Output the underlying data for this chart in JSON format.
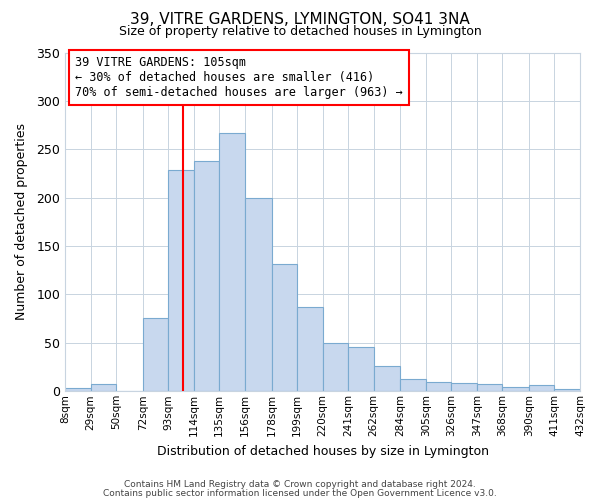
{
  "title": "39, VITRE GARDENS, LYMINGTON, SO41 3NA",
  "subtitle": "Size of property relative to detached houses in Lymington",
  "xlabel": "Distribution of detached houses by size in Lymington",
  "ylabel": "Number of detached properties",
  "bar_color": "#c8d8ee",
  "bar_edge_color": "#7aaad0",
  "background_color": "#ffffff",
  "grid_color": "#c8d4e0",
  "ylim": [
    0,
    350
  ],
  "bin_edges": [
    8,
    29,
    50,
    72,
    93,
    114,
    135,
    156,
    178,
    199,
    220,
    241,
    262,
    284,
    305,
    326,
    347,
    368,
    390,
    411,
    432
  ],
  "bar_heights": [
    3,
    7,
    0,
    76,
    229,
    238,
    267,
    200,
    131,
    87,
    50,
    46,
    26,
    13,
    10,
    9,
    7,
    4,
    6,
    2
  ],
  "tick_labels": [
    "8sqm",
    "29sqm",
    "50sqm",
    "72sqm",
    "93sqm",
    "114sqm",
    "135sqm",
    "156sqm",
    "178sqm",
    "199sqm",
    "220sqm",
    "241sqm",
    "262sqm",
    "284sqm",
    "305sqm",
    "326sqm",
    "347sqm",
    "368sqm",
    "390sqm",
    "411sqm",
    "432sqm"
  ],
  "red_line_x": 105,
  "annotation_line1": "39 VITRE GARDENS: 105sqm",
  "annotation_line2": "← 30% of detached houses are smaller (416)",
  "annotation_line3": "70% of semi-detached houses are larger (963) →",
  "footer_line1": "Contains HM Land Registry data © Crown copyright and database right 2024.",
  "footer_line2": "Contains public sector information licensed under the Open Government Licence v3.0.",
  "yticks": [
    0,
    50,
    100,
    150,
    200,
    250,
    300,
    350
  ]
}
